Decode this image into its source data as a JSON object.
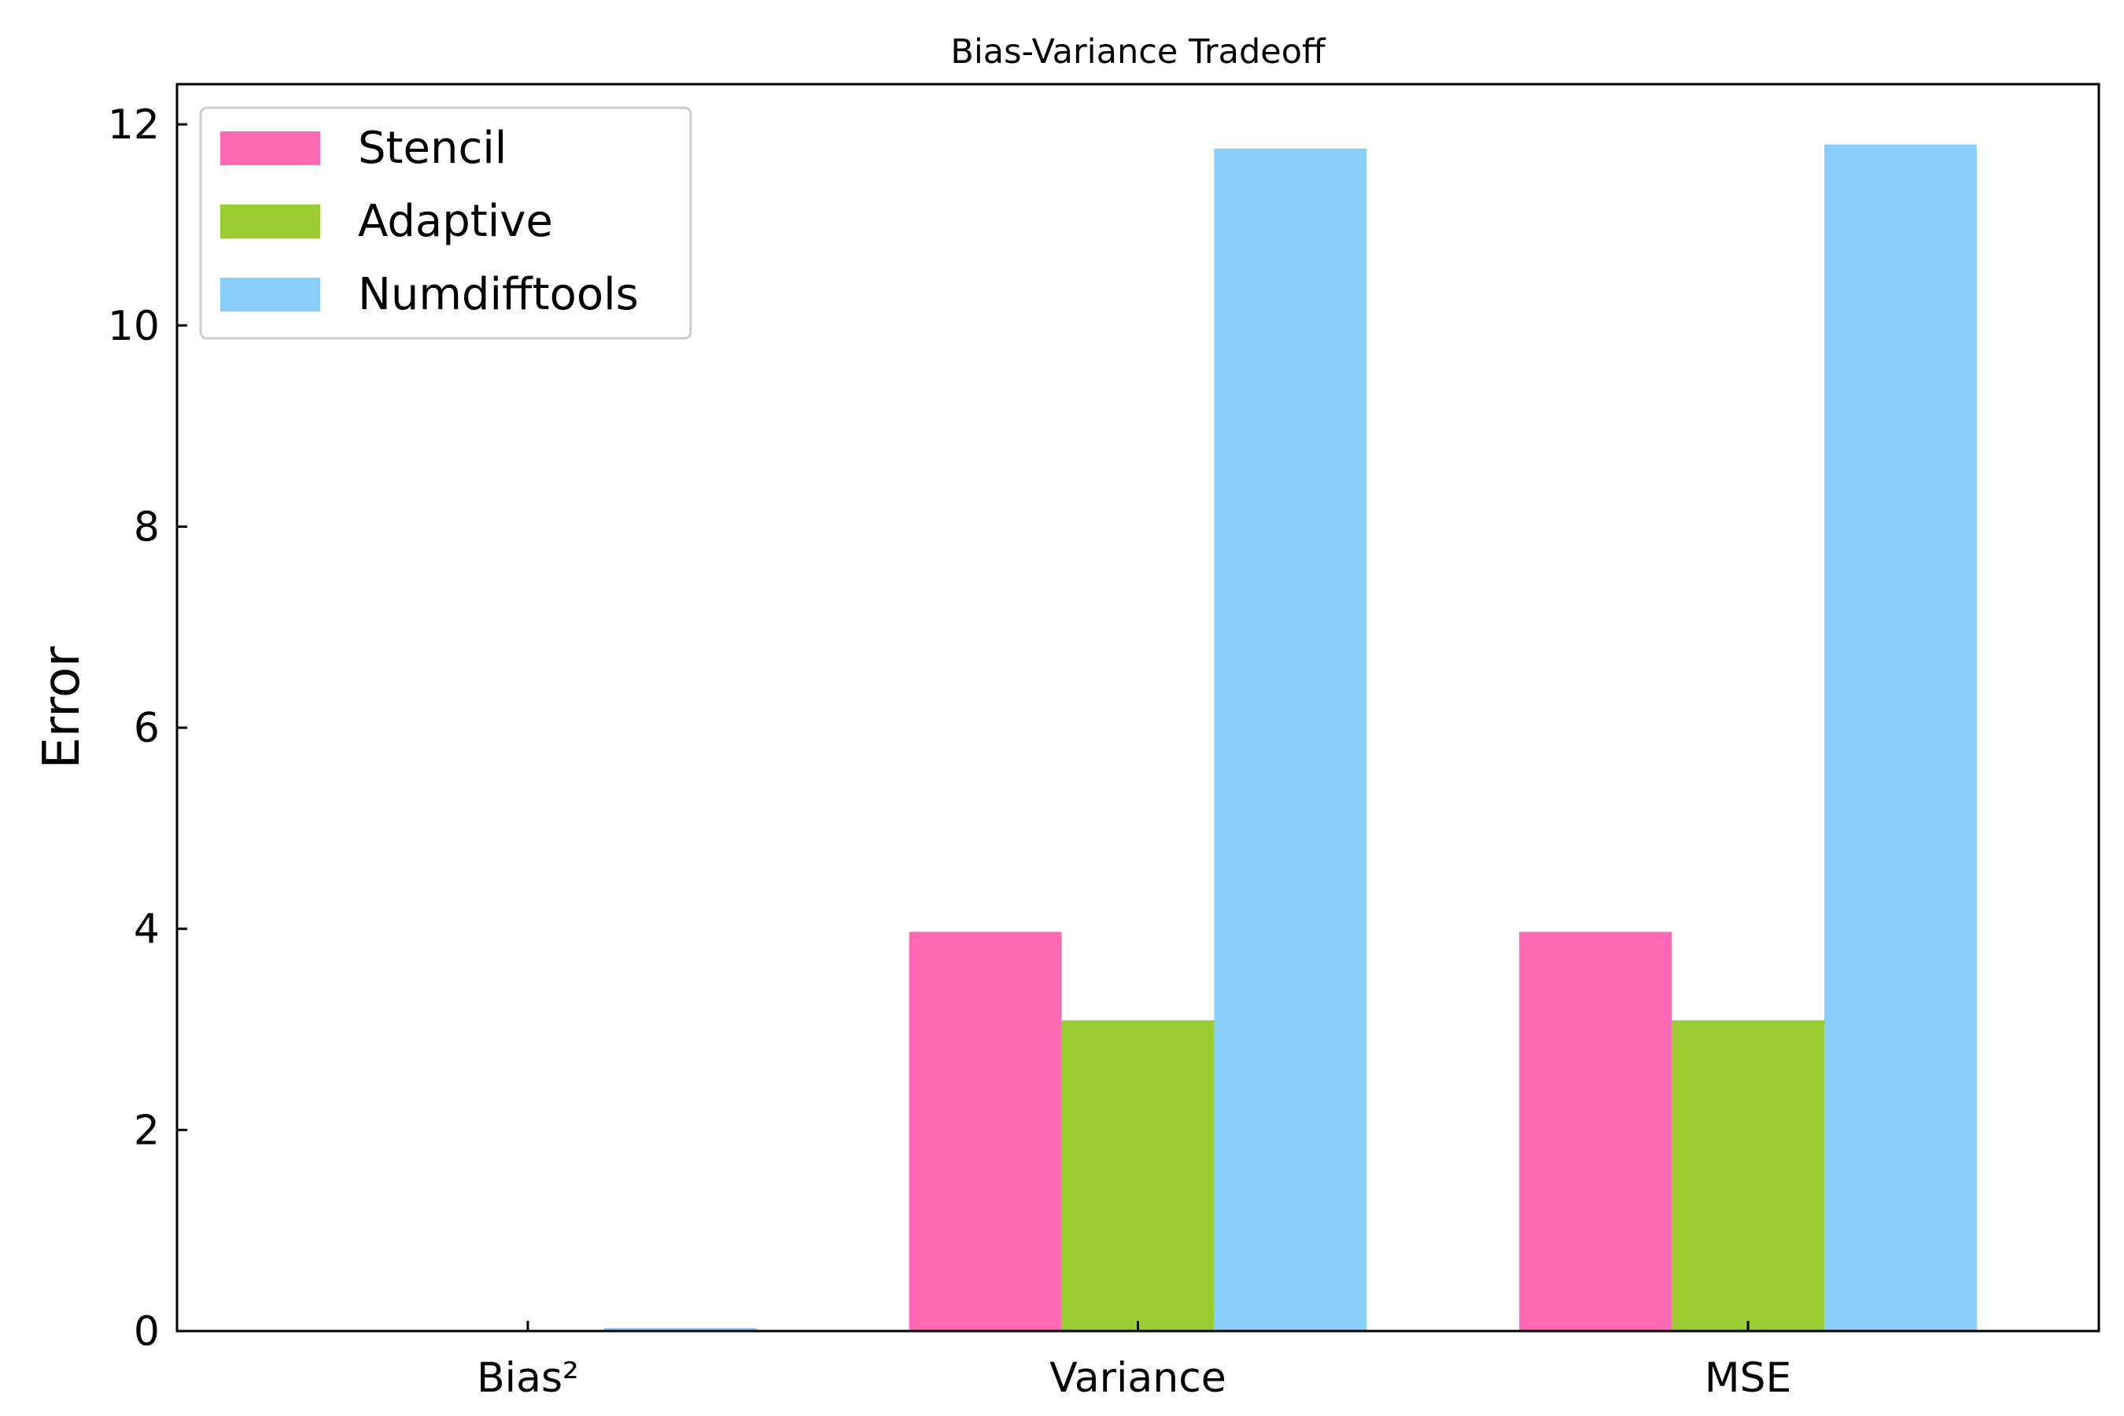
{
  "chart_data": {
    "type": "bar",
    "title": "Bias-Variance Tradeoff",
    "xlabel": "",
    "ylabel": "Error",
    "categories": [
      "Bias²",
      "Variance",
      "MSE"
    ],
    "series": [
      {
        "name": "Stencil",
        "color": "#ff69b4",
        "values": [
          0.0,
          3.97,
          3.97
        ]
      },
      {
        "name": "Adaptive",
        "color": "#9acd32",
        "values": [
          0.0,
          3.09,
          3.09
        ]
      },
      {
        "name": "Numdifftools",
        "color": "#87cefa",
        "values": [
          0.03,
          11.76,
          11.8
        ]
      }
    ],
    "ylim": [
      0,
      12.4
    ],
    "yticks": [
      0,
      2,
      4,
      6,
      8,
      10,
      12
    ],
    "grid": false,
    "legend_position": "top-left"
  }
}
